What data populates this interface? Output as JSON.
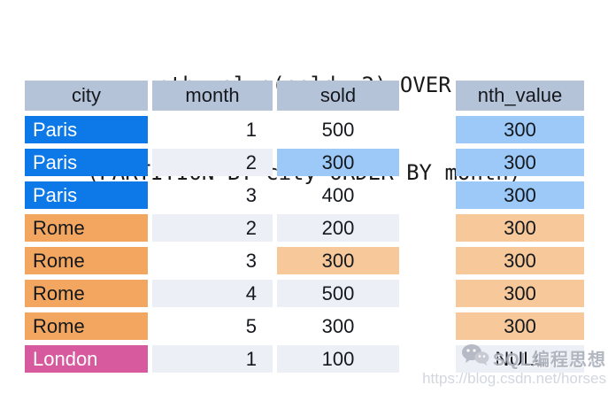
{
  "title": {
    "line1": "nth_value(sold, 2) OVER",
    "line2": "(PARTITION BY city ORDER BY month)"
  },
  "table": {
    "headers": {
      "city": "city",
      "month": "month",
      "sold": "sold"
    },
    "rows": [
      {
        "city": "Paris",
        "month": "1",
        "sold": "500",
        "nth": "300",
        "partition": "paris",
        "shade": "plain",
        "sold_hl": false
      },
      {
        "city": "Paris",
        "month": "2",
        "sold": "300",
        "nth": "300",
        "partition": "paris",
        "shade": "alt",
        "sold_hl": true
      },
      {
        "city": "Paris",
        "month": "3",
        "sold": "400",
        "nth": "300",
        "partition": "paris",
        "shade": "plain",
        "sold_hl": false
      },
      {
        "city": "Rome",
        "month": "2",
        "sold": "200",
        "nth": "300",
        "partition": "rome",
        "shade": "alt",
        "sold_hl": false
      },
      {
        "city": "Rome",
        "month": "3",
        "sold": "300",
        "nth": "300",
        "partition": "rome",
        "shade": "plain",
        "sold_hl": true
      },
      {
        "city": "Rome",
        "month": "4",
        "sold": "500",
        "nth": "300",
        "partition": "rome",
        "shade": "alt",
        "sold_hl": false
      },
      {
        "city": "Rome",
        "month": "5",
        "sold": "300",
        "nth": "300",
        "partition": "rome",
        "shade": "plain",
        "sold_hl": false
      },
      {
        "city": "London",
        "month": "1",
        "sold": "100",
        "nth": "NULL",
        "partition": "london",
        "shade": "alt",
        "sold_hl": false
      }
    ]
  },
  "result": {
    "header": "nth_value"
  },
  "watermark": {
    "icon": "wechat-icon",
    "brand": "SQL编程思想",
    "url": "https://blog.csdn.net/horses"
  },
  "colors": {
    "header_bg": "#b5c3d9",
    "paris_bg": "#0d78e8",
    "rome_bg": "#f2a660",
    "london_bg": "#d75a9f",
    "paris_highlight": "#9cc9f7",
    "rome_highlight": "#f6c89a",
    "alt_row_bg": "#eceff5",
    "text": "#15181d"
  }
}
